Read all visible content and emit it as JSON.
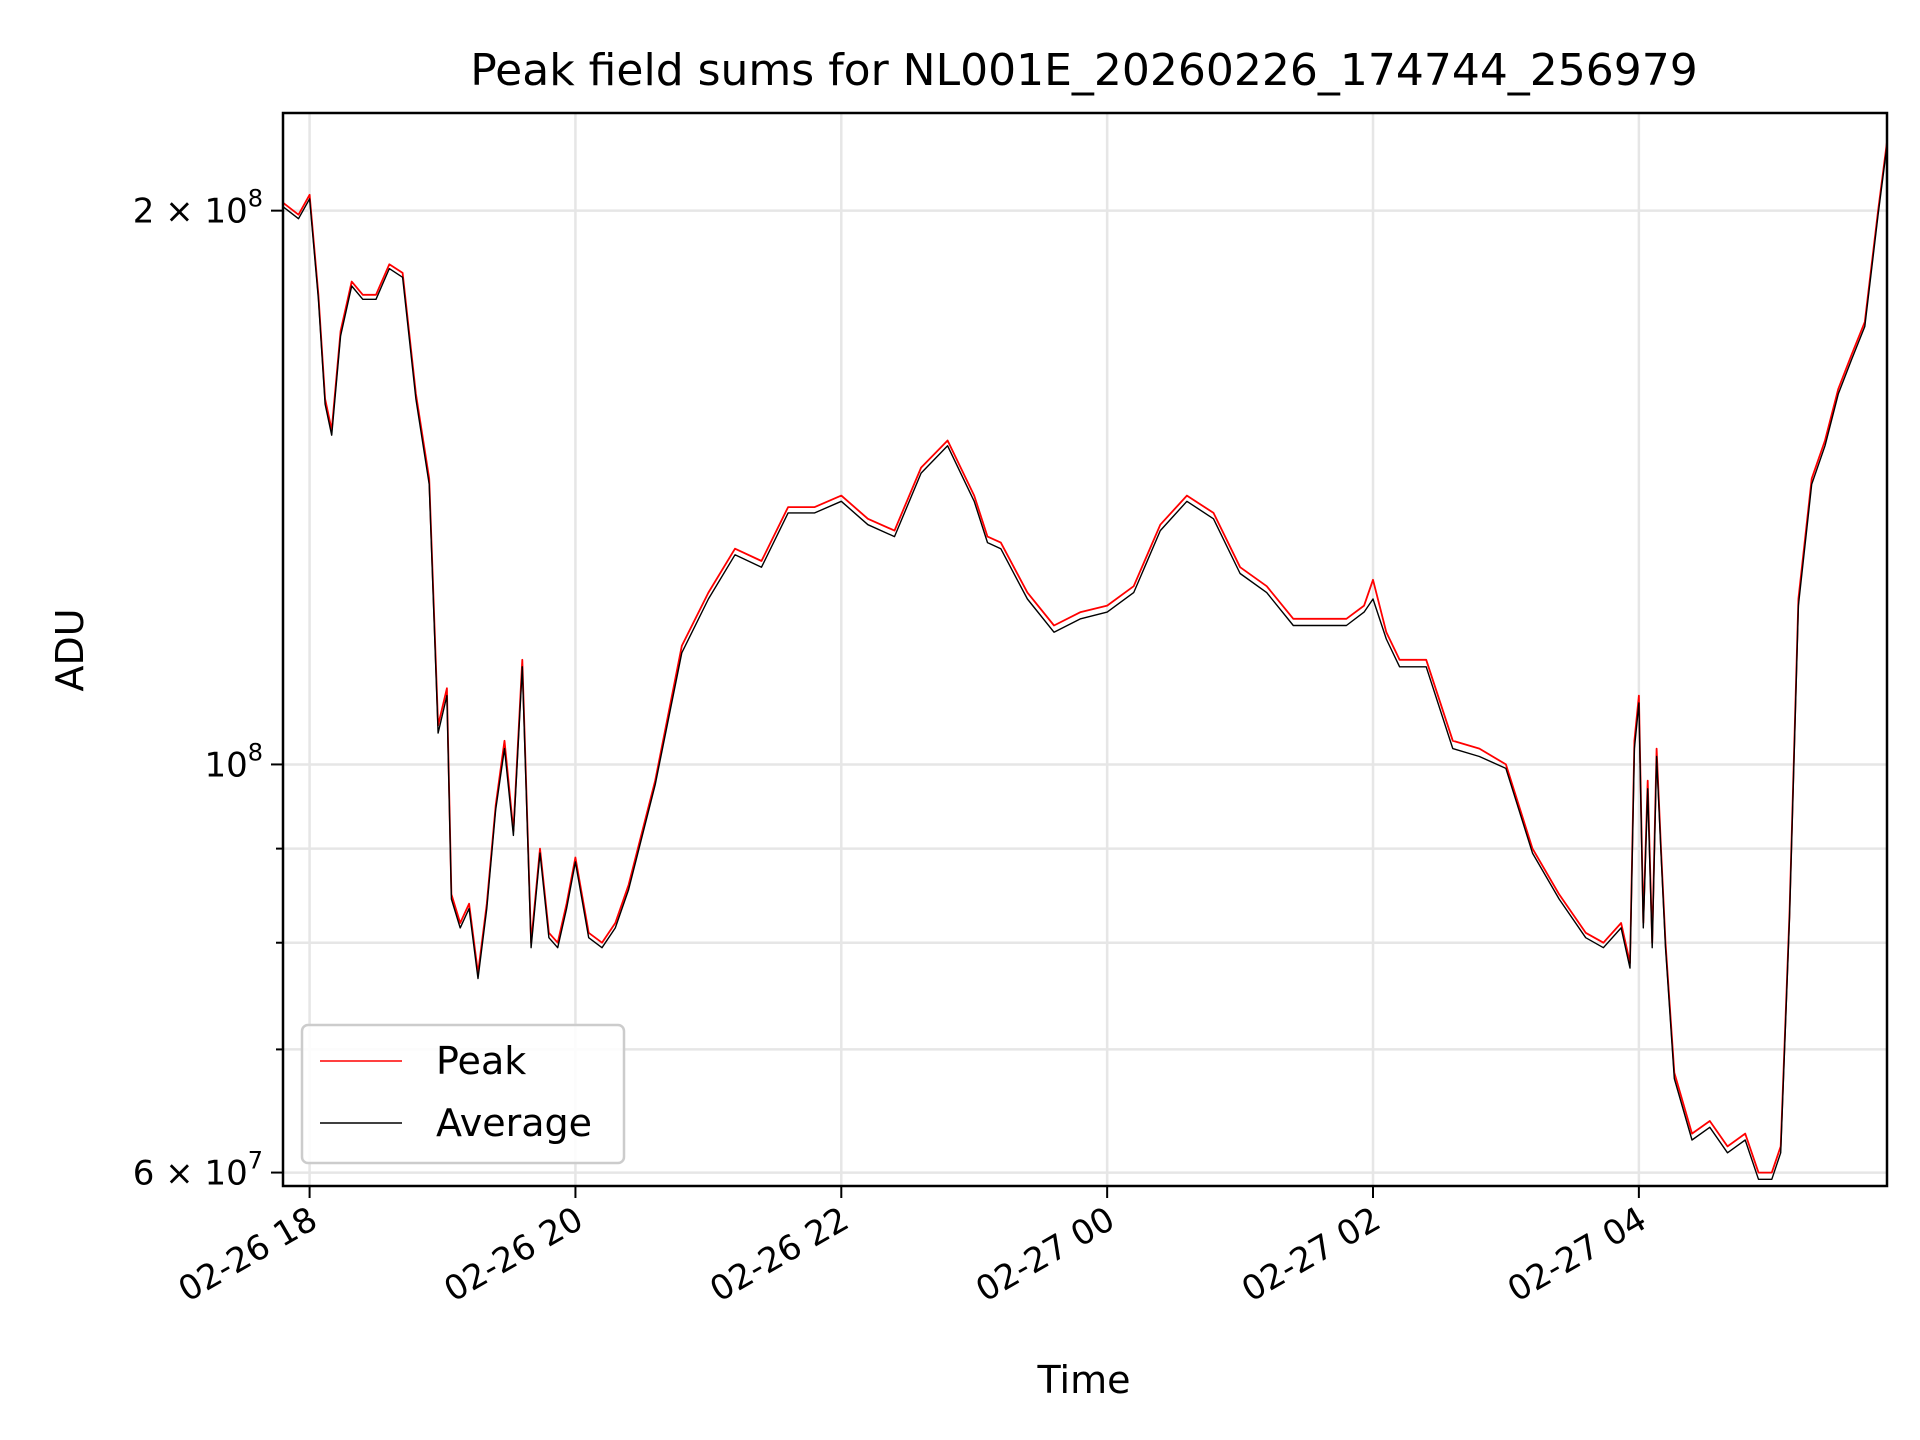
{
  "chart_data": {
    "type": "line",
    "title": "Peak field sums for NL001E_20260226_174744_256979",
    "xlabel": "Time",
    "ylabel": "ADU",
    "yscale": "log",
    "ylim": [
      59000000,
      226000000
    ],
    "xlim": [
      "2026-02-26 17:48",
      "2026-02-27 05:52"
    ],
    "grid": true,
    "legend_position": "lower-left",
    "x_ticks": [
      {
        "t": "2026-02-26 18:00",
        "label": "02-26 18"
      },
      {
        "t": "2026-02-26 20:00",
        "label": "02-26 20"
      },
      {
        "t": "2026-02-26 22:00",
        "label": "02-26 22"
      },
      {
        "t": "2026-02-27 00:00",
        "label": "02-27 00"
      },
      {
        "t": "2026-02-27 02:00",
        "label": "02-27 02"
      },
      {
        "t": "2026-02-27 04:00",
        "label": "02-27 04"
      }
    ],
    "y_major_ticks": [
      {
        "value": 60000000,
        "base": "6 × 10",
        "exp": "7"
      },
      {
        "value": 100000000,
        "base": "10",
        "exp": "8"
      },
      {
        "value": 200000000,
        "base": "2 × 10",
        "exp": "8"
      }
    ],
    "y_minor_ticks": [
      70000000,
      80000000,
      90000000
    ],
    "colors": {
      "peak": "#ff0000",
      "average": "#000000"
    },
    "series": [
      {
        "name": "Peak",
        "color": "#ff0000",
        "x": [
          "2026-02-26 17:48",
          "2026-02-26 17:55",
          "2026-02-26 18:00",
          "2026-02-26 18:04",
          "2026-02-26 18:07",
          "2026-02-26 18:10",
          "2026-02-26 18:14",
          "2026-02-26 18:19",
          "2026-02-26 18:24",
          "2026-02-26 18:30",
          "2026-02-26 18:36",
          "2026-02-26 18:42",
          "2026-02-26 18:48",
          "2026-02-26 18:54",
          "2026-02-26 18:58",
          "2026-02-26 19:02",
          "2026-02-26 19:04",
          "2026-02-26 19:08",
          "2026-02-26 19:12",
          "2026-02-26 19:16",
          "2026-02-26 19:20",
          "2026-02-26 19:24",
          "2026-02-26 19:28",
          "2026-02-26 19:32",
          "2026-02-26 19:36",
          "2026-02-26 19:40",
          "2026-02-26 19:44",
          "2026-02-26 19:48",
          "2026-02-26 19:52",
          "2026-02-26 19:56",
          "2026-02-26 20:00",
          "2026-02-26 20:06",
          "2026-02-26 20:12",
          "2026-02-26 20:18",
          "2026-02-26 20:24",
          "2026-02-26 20:36",
          "2026-02-26 20:48",
          "2026-02-26 21:00",
          "2026-02-26 21:12",
          "2026-02-26 21:24",
          "2026-02-26 21:36",
          "2026-02-26 21:48",
          "2026-02-26 22:00",
          "2026-02-26 22:12",
          "2026-02-26 22:24",
          "2026-02-26 22:36",
          "2026-02-26 22:48",
          "2026-02-26 23:00",
          "2026-02-26 23:06",
          "2026-02-26 23:12",
          "2026-02-26 23:24",
          "2026-02-26 23:36",
          "2026-02-26 23:48",
          "2026-02-27 00:00",
          "2026-02-27 00:12",
          "2026-02-27 00:24",
          "2026-02-27 00:36",
          "2026-02-27 00:48",
          "2026-02-27 01:00",
          "2026-02-27 01:12",
          "2026-02-27 01:24",
          "2026-02-27 01:36",
          "2026-02-27 01:48",
          "2026-02-27 01:56",
          "2026-02-27 02:00",
          "2026-02-27 02:06",
          "2026-02-27 02:12",
          "2026-02-27 02:24",
          "2026-02-27 02:36",
          "2026-02-27 02:48",
          "2026-02-27 03:00",
          "2026-02-27 03:12",
          "2026-02-27 03:24",
          "2026-02-27 03:36",
          "2026-02-27 03:44",
          "2026-02-27 03:52",
          "2026-02-27 03:56",
          "2026-02-27 03:58",
          "2026-02-27 04:00",
          "2026-02-27 04:02",
          "2026-02-27 04:04",
          "2026-02-27 04:06",
          "2026-02-27 04:08",
          "2026-02-27 04:10",
          "2026-02-27 04:12",
          "2026-02-27 04:16",
          "2026-02-27 04:24",
          "2026-02-27 04:32",
          "2026-02-27 04:40",
          "2026-02-27 04:48",
          "2026-02-27 04:54",
          "2026-02-27 05:00",
          "2026-02-27 05:04",
          "2026-02-27 05:08",
          "2026-02-27 05:12",
          "2026-02-27 05:18",
          "2026-02-27 05:24",
          "2026-02-27 05:30",
          "2026-02-27 05:36",
          "2026-02-27 05:42",
          "2026-02-27 05:48",
          "2026-02-27 05:52"
        ],
        "y": [
          202000000,
          199000000,
          204000000,
          180000000,
          158000000,
          152000000,
          172000000,
          183000000,
          180000000,
          180000000,
          187000000,
          185000000,
          159000000,
          143000000,
          105000000,
          110000000,
          85000000,
          82000000,
          84000000,
          77000000,
          84000000,
          95000000,
          103000000,
          92000000,
          114000000,
          80000000,
          90000000,
          81000000,
          80000000,
          84000000,
          89000000,
          81000000,
          80000000,
          82000000,
          86000000,
          98000000,
          116000000,
          124000000,
          131000000,
          129000000,
          138000000,
          138000000,
          140000000,
          136000000,
          134000000,
          145000000,
          150000000,
          140000000,
          133000000,
          132000000,
          124000000,
          119000000,
          121000000,
          122000000,
          125000000,
          135000000,
          140000000,
          137000000,
          128000000,
          125000000,
          120000000,
          120000000,
          120000000,
          122000000,
          126000000,
          118000000,
          114000000,
          114000000,
          103000000,
          102000000,
          100000000,
          90000000,
          85000000,
          81000000,
          80000000,
          82000000,
          78000000,
          103000000,
          109000000,
          82000000,
          98000000,
          80000000,
          102000000,
          90000000,
          80000000,
          68000000,
          63000000,
          64000000,
          62000000,
          63000000,
          60000000,
          60000000,
          62000000,
          83000000,
          123000000,
          143000000,
          150000000,
          160000000,
          167000000,
          174000000,
          200000000,
          218000000
        ]
      },
      {
        "name": "Average",
        "color": "#000000",
        "x": [
          "2026-02-26 17:48",
          "2026-02-26 17:55",
          "2026-02-26 18:00",
          "2026-02-26 18:04",
          "2026-02-26 18:07",
          "2026-02-26 18:10",
          "2026-02-26 18:14",
          "2026-02-26 18:19",
          "2026-02-26 18:24",
          "2026-02-26 18:30",
          "2026-02-26 18:36",
          "2026-02-26 18:42",
          "2026-02-26 18:48",
          "2026-02-26 18:54",
          "2026-02-26 18:58",
          "2026-02-26 19:02",
          "2026-02-26 19:04",
          "2026-02-26 19:08",
          "2026-02-26 19:12",
          "2026-02-26 19:16",
          "2026-02-26 19:20",
          "2026-02-26 19:24",
          "2026-02-26 19:28",
          "2026-02-26 19:32",
          "2026-02-26 19:36",
          "2026-02-26 19:40",
          "2026-02-26 19:44",
          "2026-02-26 19:48",
          "2026-02-26 19:52",
          "2026-02-26 19:56",
          "2026-02-26 20:00",
          "2026-02-26 20:06",
          "2026-02-26 20:12",
          "2026-02-26 20:18",
          "2026-02-26 20:24",
          "2026-02-26 20:36",
          "2026-02-26 20:48",
          "2026-02-26 21:00",
          "2026-02-26 21:12",
          "2026-02-26 21:24",
          "2026-02-26 21:36",
          "2026-02-26 21:48",
          "2026-02-26 22:00",
          "2026-02-26 22:12",
          "2026-02-26 22:24",
          "2026-02-26 22:36",
          "2026-02-26 22:48",
          "2026-02-26 23:00",
          "2026-02-26 23:06",
          "2026-02-26 23:12",
          "2026-02-26 23:24",
          "2026-02-26 23:36",
          "2026-02-26 23:48",
          "2026-02-27 00:00",
          "2026-02-27 00:12",
          "2026-02-27 00:24",
          "2026-02-27 00:36",
          "2026-02-27 00:48",
          "2026-02-27 01:00",
          "2026-02-27 01:12",
          "2026-02-27 01:24",
          "2026-02-27 01:36",
          "2026-02-27 01:48",
          "2026-02-27 01:56",
          "2026-02-27 02:00",
          "2026-02-27 02:06",
          "2026-02-27 02:12",
          "2026-02-27 02:24",
          "2026-02-27 02:36",
          "2026-02-27 02:48",
          "2026-02-27 03:00",
          "2026-02-27 03:12",
          "2026-02-27 03:24",
          "2026-02-27 03:36",
          "2026-02-27 03:44",
          "2026-02-27 03:52",
          "2026-02-27 03:56",
          "2026-02-27 03:58",
          "2026-02-27 04:00",
          "2026-02-27 04:02",
          "2026-02-27 04:04",
          "2026-02-27 04:06",
          "2026-02-27 04:08",
          "2026-02-27 04:10",
          "2026-02-27 04:12",
          "2026-02-27 04:16",
          "2026-02-27 04:24",
          "2026-02-27 04:32",
          "2026-02-27 04:40",
          "2026-02-27 04:48",
          "2026-02-27 04:54",
          "2026-02-27 05:00",
          "2026-02-27 05:04",
          "2026-02-27 05:08",
          "2026-02-27 05:12",
          "2026-02-27 05:18",
          "2026-02-27 05:24",
          "2026-02-27 05:30",
          "2026-02-27 05:36",
          "2026-02-27 05:42",
          "2026-02-27 05:48",
          "2026-02-27 05:52"
        ],
        "y": [
          201000000,
          198000000,
          203000000,
          179000000,
          157000000,
          151000000,
          171000000,
          182000000,
          179000000,
          179000000,
          186000000,
          184000000,
          158000000,
          142000000,
          104000000,
          109000000,
          84500000,
          81500000,
          83500000,
          76500000,
          83500000,
          94500000,
          102000000,
          91500000,
          113000000,
          79500000,
          89500000,
          80500000,
          79500000,
          83500000,
          88500000,
          80500000,
          79500000,
          81500000,
          85500000,
          97500000,
          115000000,
          123000000,
          130000000,
          128000000,
          137000000,
          137000000,
          139000000,
          135000000,
          133000000,
          144000000,
          149000000,
          139000000,
          132000000,
          131000000,
          123000000,
          118000000,
          120000000,
          121000000,
          124000000,
          134000000,
          139000000,
          136000000,
          127000000,
          124000000,
          119000000,
          119000000,
          119000000,
          121000000,
          123000000,
          117000000,
          113000000,
          113000000,
          102000000,
          101000000,
          99500000,
          89500000,
          84500000,
          80500000,
          79500000,
          81500000,
          77500000,
          102000000,
          108000000,
          81500000,
          97000000,
          79500000,
          101000000,
          89500000,
          79500000,
          67500000,
          62500000,
          63500000,
          61500000,
          62500000,
          59500000,
          59500000,
          61500000,
          82500000,
          122000000,
          142000000,
          149000000,
          159000000,
          166000000,
          173000000,
          199000000,
          217000000
        ]
      }
    ]
  }
}
